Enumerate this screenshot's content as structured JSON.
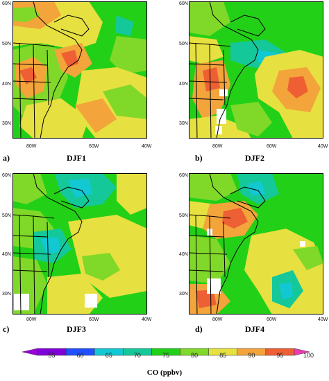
{
  "panels": [
    {
      "letter": "a)",
      "title": "DJF1",
      "lat_ticks": [
        "60N",
        "50N",
        "40N",
        "30N"
      ],
      "lon_ticks": [
        "80W",
        "60W",
        "40W"
      ]
    },
    {
      "letter": "b)",
      "title": "DJF2",
      "lat_ticks": [
        "60N",
        "50N",
        "40N",
        "30N"
      ],
      "lon_ticks": [
        "80W",
        "60W",
        "40W"
      ]
    },
    {
      "letter": "c)",
      "title": "DJF3",
      "lat_ticks": [
        "60N",
        "50N",
        "40N",
        "30N"
      ],
      "lon_ticks": [
        "80W",
        "60W",
        "40W"
      ]
    },
    {
      "letter": "d)",
      "title": "DJF4",
      "lat_ticks": [
        "60N",
        "50N",
        "40N",
        "30N"
      ],
      "lon_ticks": [
        "80W",
        "60W",
        "40W"
      ]
    }
  ],
  "colorbar": {
    "title": "CO (ppbv)",
    "ticks": [
      "55",
      "60",
      "65",
      "70",
      "75",
      "80",
      "85",
      "90",
      "95",
      "100"
    ],
    "colors": [
      "#9a00d8",
      "#7f00d8",
      "#1f4fff",
      "#12c8d2",
      "#14c89a",
      "#22d018",
      "#80d828",
      "#e6e040",
      "#f3a43a",
      "#ee5f34",
      "#ee3ab2"
    ]
  },
  "legend_colors": {
    "c75": "#14c89a",
    "c80": "#22d018",
    "c85": "#80d828",
    "c90": "#e6e040",
    "c95": "#f3a43a",
    "c100": "#ee5f34",
    "land": "#000000",
    "missing": "#ffffff"
  }
}
